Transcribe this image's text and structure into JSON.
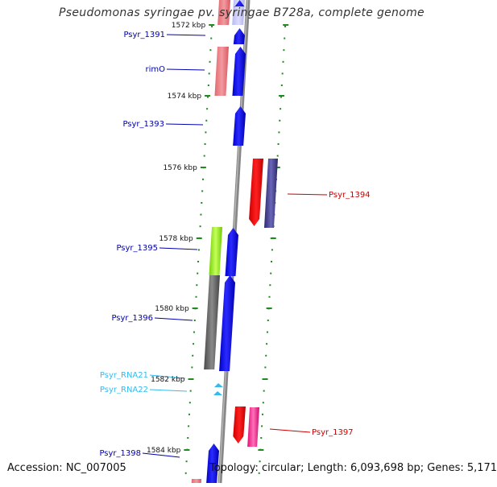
{
  "header": {
    "title": "Pseudomonas syringae pv. syringae B728a, complete genome"
  },
  "footer": {
    "accession": "Accession: NC_007005",
    "topology": "Topology: circular; Length: 6,093,698 bp; Genes: 5,171"
  },
  "colors": {
    "forward_label": "#0000b0",
    "reverse_label": "#cc0000",
    "rna_label": "#33bbee",
    "backbone": "#888888",
    "tick": "#1f8a1f"
  },
  "ruler": {
    "unit": "kbp",
    "ticks": [
      "1572 kbp",
      "1574 kbp",
      "1576 kbp",
      "1578 kbp",
      "1580 kbp",
      "1582 kbp",
      "1584 kbp"
    ]
  },
  "genes": [
    {
      "name": "Psyr_1391",
      "strand": "forward",
      "color": "#0000ee"
    },
    {
      "name": "rimO",
      "strand": "forward",
      "color": "#0000ee"
    },
    {
      "name": "Psyr_1393",
      "strand": "forward",
      "color": "#0000ee"
    },
    {
      "name": "Psyr_1394",
      "strand": "reverse",
      "color": "#ee0000"
    },
    {
      "name": "Psyr_1395",
      "strand": "forward",
      "color": "#99ee22"
    },
    {
      "name": "Psyr_1396",
      "strand": "forward",
      "color": "#555555"
    },
    {
      "name": "Psyr_RNA21",
      "strand": "forward",
      "color": "#33bbee"
    },
    {
      "name": "Psyr_RNA22",
      "strand": "forward",
      "color": "#33bbee"
    },
    {
      "name": "Psyr_1397",
      "strand": "reverse",
      "color": "#ee0000"
    },
    {
      "name": "Psyr_1398",
      "strand": "forward",
      "color": "#0000ee"
    }
  ]
}
